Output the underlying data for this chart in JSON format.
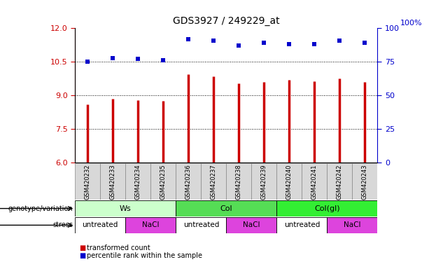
{
  "title": "GDS3927 / 249229_at",
  "samples": [
    "GSM420232",
    "GSM420233",
    "GSM420234",
    "GSM420235",
    "GSM420236",
    "GSM420237",
    "GSM420238",
    "GSM420239",
    "GSM420240",
    "GSM420241",
    "GSM420242",
    "GSM420243"
  ],
  "bar_values": [
    8.6,
    8.85,
    8.8,
    8.75,
    9.95,
    9.85,
    9.55,
    9.6,
    9.7,
    9.65,
    9.75,
    9.6
  ],
  "dot_values": [
    75,
    78,
    77,
    76,
    92,
    91,
    87,
    89,
    88,
    88,
    91,
    89
  ],
  "ylim_left": [
    6,
    12
  ],
  "ylim_right": [
    0,
    100
  ],
  "yticks_left": [
    6,
    7.5,
    9,
    10.5,
    12
  ],
  "yticks_right": [
    0,
    25,
    50,
    75,
    100
  ],
  "bar_color": "#CC0000",
  "dot_color": "#0000CC",
  "grid_values": [
    7.5,
    9.0,
    10.5
  ],
  "genotype_groups": [
    {
      "label": "Ws",
      "start": 0,
      "end": 4,
      "color": "#ccffcc"
    },
    {
      "label": "Col",
      "start": 4,
      "end": 8,
      "color": "#55dd55"
    },
    {
      "label": "Col(gl)",
      "start": 8,
      "end": 12,
      "color": "#33ee33"
    }
  ],
  "stress_groups": [
    {
      "label": "untreated",
      "start": 0,
      "end": 2,
      "color": "#ffffff"
    },
    {
      "label": "NaCl",
      "start": 2,
      "end": 4,
      "color": "#dd44dd"
    },
    {
      "label": "untreated",
      "start": 4,
      "end": 6,
      "color": "#ffffff"
    },
    {
      "label": "NaCl",
      "start": 6,
      "end": 8,
      "color": "#dd44dd"
    },
    {
      "label": "untreated",
      "start": 8,
      "end": 10,
      "color": "#ffffff"
    },
    {
      "label": "NaCl",
      "start": 10,
      "end": 12,
      "color": "#dd44dd"
    }
  ],
  "legend_red": "transformed count",
  "legend_blue": "percentile rank within the sample",
  "right_axis_color": "#0000CC",
  "left_axis_color": "#CC0000",
  "percent_label": "100%",
  "gray_cell_color": "#d8d8d8",
  "cell_border_color": "#888888"
}
